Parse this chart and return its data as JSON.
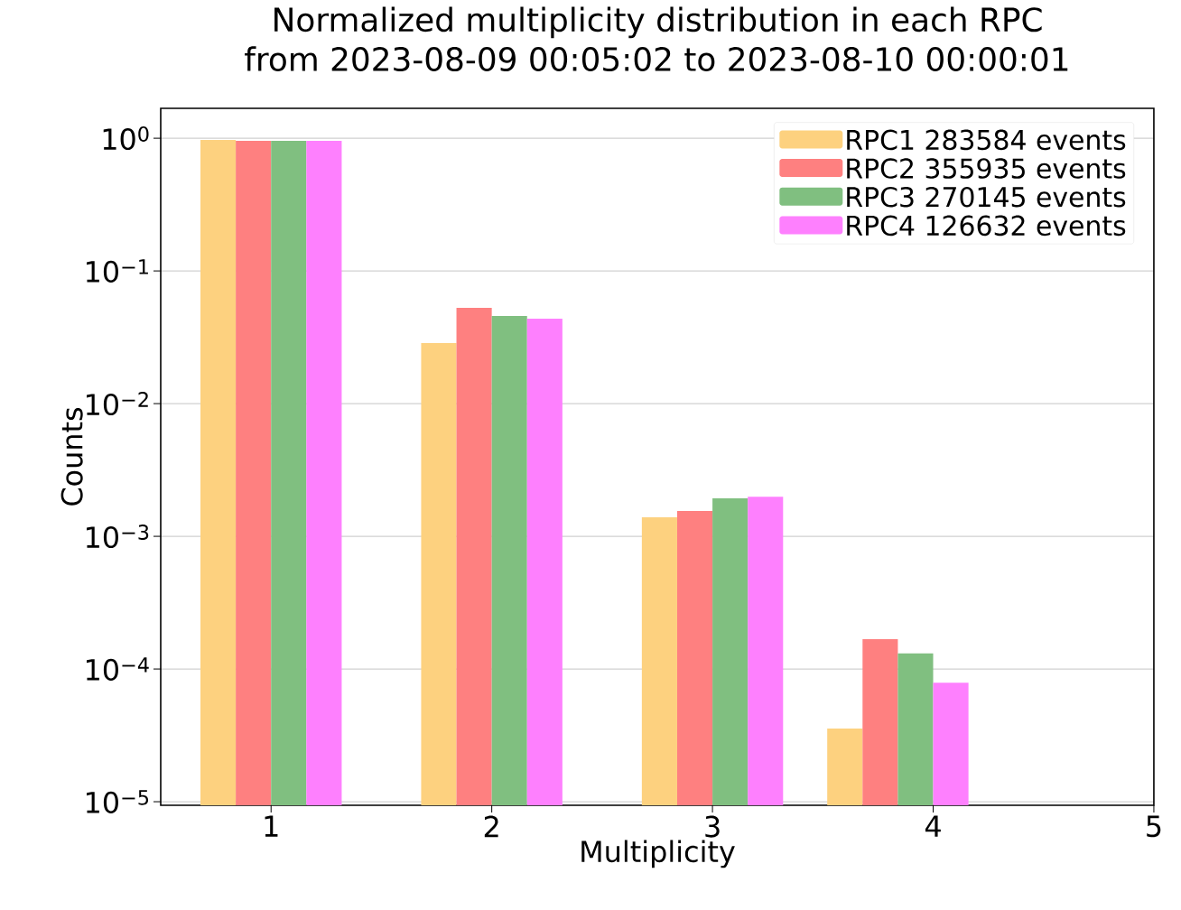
{
  "chart_data": {
    "type": "bar",
    "title": "Normalized multiplicity distribution in each RPC",
    "subtitle": "from 2023-08-09 00:05:02 to 2023-08-10 00:00:01",
    "xlabel": "Multiplicity",
    "ylabel": "Counts",
    "series": [
      {
        "name": "RPC1 283584 events",
        "color": "#fdd17f",
        "x": [
          0.76,
          1.76,
          2.76,
          3.6
        ],
        "values": [
          0.97,
          0.0286,
          0.00139,
          3.56e-05
        ]
      },
      {
        "name": "RPC2 355935 events",
        "color": "#fe8080",
        "x": [
          0.92,
          1.92,
          2.92,
          3.76
        ],
        "values": [
          0.955,
          0.0526,
          0.00155,
          0.000168
        ]
      },
      {
        "name": "RPC3 270145 events",
        "color": "#80bf80",
        "x": [
          1.08,
          2.08,
          3.08,
          3.92
        ],
        "values": [
          0.955,
          0.0457,
          0.00193,
          0.000131
        ]
      },
      {
        "name": "RPC4 126632 events",
        "color": "#fe80fe",
        "x": [
          1.24,
          2.24,
          3.24,
          4.08
        ],
        "values": [
          0.955,
          0.0436,
          0.00199,
          7.9e-05
        ]
      }
    ],
    "xlim": [
      0.5,
      5
    ],
    "xticks": [
      1,
      2,
      3,
      4,
      5
    ],
    "ylim": [
      9.4e-06,
      1.68
    ],
    "yticks": [
      {
        "value": 1,
        "label": "10$^{0}$"
      },
      {
        "value": 0.1,
        "label": "10$^{−1}$"
      },
      {
        "value": 0.01,
        "label": "10$^{−2}$"
      },
      {
        "value": 0.001,
        "label": "10$^{−3}$"
      },
      {
        "value": 0.0001,
        "label": "10$^{−4}$"
      },
      {
        "value": 1e-05,
        "label": "10$^{−5}$"
      }
    ],
    "log": true,
    "grid": "y",
    "legend": "top right"
  }
}
